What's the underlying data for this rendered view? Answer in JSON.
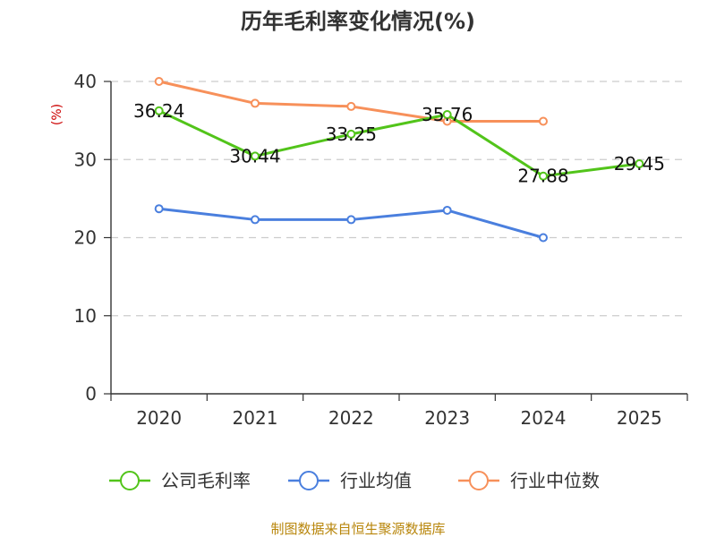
{
  "chart_data": {
    "type": "line",
    "title": "历年毛利率变化情况(%)",
    "ylabel": "(%)",
    "categories": [
      "2020",
      "2021",
      "2022",
      "2023",
      "2024",
      "2025"
    ],
    "ylim": [
      0,
      40
    ],
    "yticks": [
      0,
      10,
      20,
      30,
      40
    ],
    "grid": true,
    "legend_position": "bottom",
    "series": [
      {
        "name": "公司毛利率",
        "color": "#52c41a",
        "values": [
          36.24,
          30.44,
          33.25,
          35.76,
          27.88,
          29.45
        ],
        "labels": [
          "36.24",
          "30.44",
          "33.25",
          "35.76",
          "27.88",
          "29.45"
        ]
      },
      {
        "name": "行业均值",
        "color": "#4a7fde",
        "values": [
          23.7,
          22.3,
          22.3,
          23.5,
          20.0,
          null
        ]
      },
      {
        "name": "行业中位数",
        "color": "#f7905a",
        "values": [
          40.0,
          37.2,
          36.8,
          34.9,
          34.9,
          null
        ]
      }
    ]
  },
  "source": "制图数据来自恒生聚源数据库"
}
